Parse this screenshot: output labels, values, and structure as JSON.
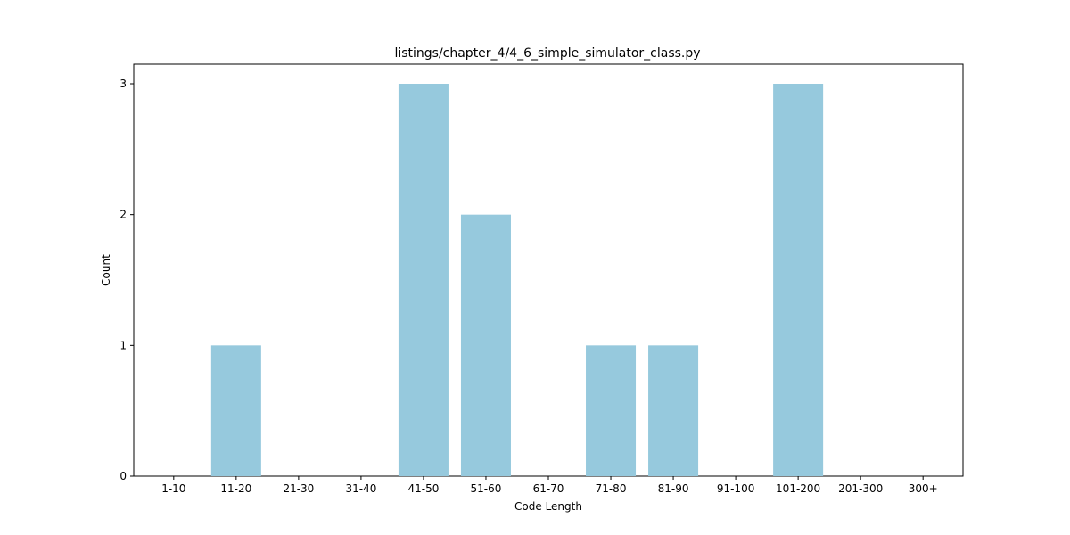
{
  "chart_data": {
    "type": "bar",
    "title": "listings/chapter_4/4_6_simple_simulator_class.py",
    "xlabel": "Code Length",
    "ylabel": "Count",
    "categories": [
      "1-10",
      "11-20",
      "21-30",
      "31-40",
      "41-50",
      "51-60",
      "61-70",
      "71-80",
      "81-90",
      "91-100",
      "101-200",
      "201-300",
      "300+"
    ],
    "values": [
      0,
      1,
      0,
      0,
      3,
      2,
      0,
      1,
      1,
      0,
      3,
      0,
      0
    ],
    "yticks": [
      "0",
      "1",
      "2",
      "3"
    ],
    "ylim": [
      0,
      3.15
    ],
    "grid": false,
    "legend": false,
    "bar_color": "#96c9dd"
  }
}
